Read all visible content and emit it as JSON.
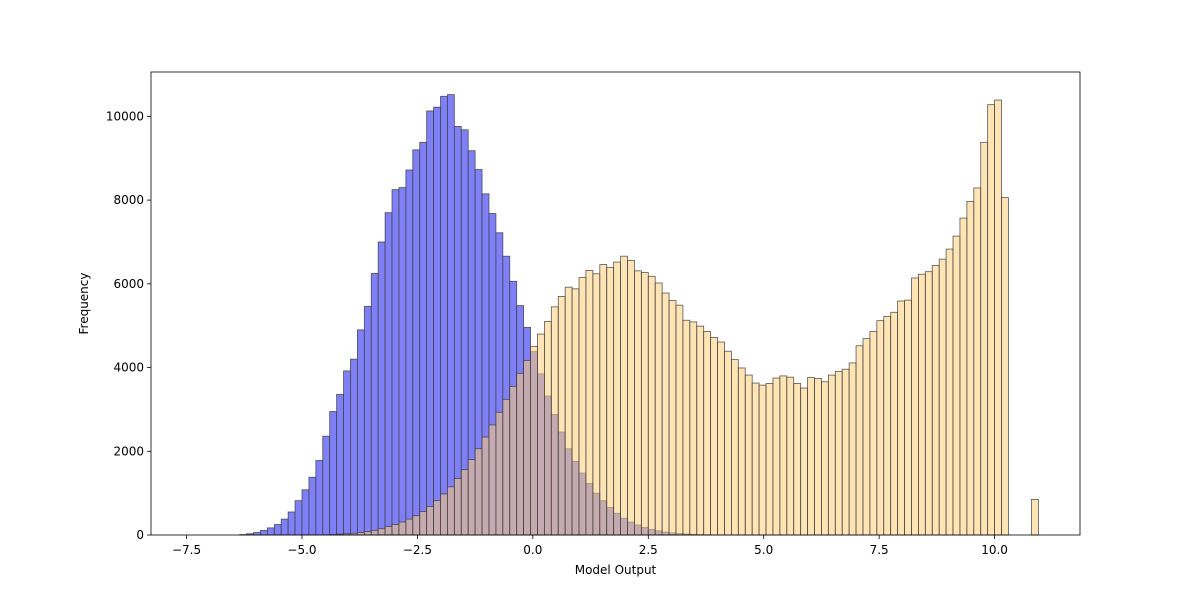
{
  "chart_data": {
    "type": "bar",
    "title": "",
    "xlabel": "Model Output",
    "ylabel": "Frequency",
    "xlim": [
      -8.27,
      11.85
    ],
    "ylim": [
      0,
      11060
    ],
    "bin_width": 0.15,
    "grid": false,
    "x_ticks": [
      -7.5,
      -5.0,
      -2.5,
      0.0,
      2.5,
      5.0,
      7.5,
      10.0
    ],
    "x_tick_labels": [
      "−7.5",
      "−5.0",
      "−2.5",
      "0.0",
      "2.5",
      "5.0",
      "7.5",
      "10.0"
    ],
    "y_ticks": [
      0,
      2000,
      4000,
      6000,
      8000,
      10000
    ],
    "y_tick_labels": [
      "0",
      "2000",
      "4000",
      "6000",
      "8000",
      "10000"
    ],
    "colors": {
      "series_a": "#7b7bf6",
      "series_b": "#ffcf79",
      "overlap": "#6b5ab8",
      "edge": "#3c3c3c"
    },
    "series": [
      {
        "color": "#7b7bf6",
        "bins": [
          [
            -6.5,
            0
          ],
          [
            -6.35,
            10
          ],
          [
            -6.2,
            30
          ],
          [
            -6.05,
            60
          ],
          [
            -5.9,
            110
          ],
          [
            -5.75,
            170
          ],
          [
            -5.6,
            250
          ],
          [
            -5.45,
            380
          ],
          [
            -5.3,
            550
          ],
          [
            -5.15,
            820
          ],
          [
            -5.0,
            1080
          ],
          [
            -4.85,
            1380
          ],
          [
            -4.7,
            1780
          ],
          [
            -4.55,
            2360
          ],
          [
            -4.4,
            2950
          ],
          [
            -4.25,
            3360
          ],
          [
            -4.1,
            3920
          ],
          [
            -3.95,
            4200
          ],
          [
            -3.8,
            4900
          ],
          [
            -3.65,
            5460
          ],
          [
            -3.5,
            6250
          ],
          [
            -3.35,
            7000
          ],
          [
            -3.2,
            7700
          ],
          [
            -3.05,
            8250
          ],
          [
            -2.9,
            8300
          ],
          [
            -2.75,
            8720
          ],
          [
            -2.6,
            9200
          ],
          [
            -2.45,
            9380
          ],
          [
            -2.3,
            10130
          ],
          [
            -2.15,
            10220
          ],
          [
            -2.0,
            10480
          ],
          [
            -1.85,
            10520
          ],
          [
            -1.7,
            9760
          ],
          [
            -1.55,
            9680
          ],
          [
            -1.4,
            9180
          ],
          [
            -1.25,
            8730
          ],
          [
            -1.1,
            8150
          ],
          [
            -0.95,
            7680
          ],
          [
            -0.8,
            7220
          ],
          [
            -0.65,
            6660
          ],
          [
            -0.5,
            6060
          ],
          [
            -0.35,
            5480
          ],
          [
            -0.2,
            4960
          ],
          [
            -0.05,
            4380
          ],
          [
            0.1,
            3850
          ],
          [
            0.25,
            3320
          ],
          [
            0.4,
            2880
          ],
          [
            0.55,
            2460
          ],
          [
            0.7,
            2060
          ],
          [
            0.85,
            1760
          ],
          [
            1.0,
            1480
          ],
          [
            1.15,
            1230
          ],
          [
            1.3,
            1000
          ],
          [
            1.45,
            820
          ],
          [
            1.6,
            660
          ],
          [
            1.75,
            520
          ],
          [
            1.9,
            400
          ],
          [
            2.05,
            310
          ],
          [
            2.2,
            240
          ],
          [
            2.35,
            180
          ],
          [
            2.5,
            135
          ],
          [
            2.65,
            100
          ],
          [
            2.8,
            70
          ],
          [
            2.95,
            50
          ],
          [
            3.1,
            35
          ],
          [
            3.25,
            25
          ],
          [
            3.4,
            15
          ],
          [
            3.55,
            10
          ],
          [
            3.7,
            5
          ]
        ]
      },
      {
        "color": "#ffcf79",
        "bins": [
          [
            -4.4,
            10
          ],
          [
            -4.25,
            20
          ],
          [
            -4.1,
            30
          ],
          [
            -3.95,
            40
          ],
          [
            -3.8,
            60
          ],
          [
            -3.65,
            80
          ],
          [
            -3.5,
            110
          ],
          [
            -3.35,
            150
          ],
          [
            -3.2,
            200
          ],
          [
            -3.05,
            250
          ],
          [
            -2.9,
            310
          ],
          [
            -2.75,
            380
          ],
          [
            -2.6,
            460
          ],
          [
            -2.45,
            560
          ],
          [
            -2.3,
            680
          ],
          [
            -2.15,
            820
          ],
          [
            -2.0,
            980
          ],
          [
            -1.85,
            1150
          ],
          [
            -1.7,
            1350
          ],
          [
            -1.55,
            1560
          ],
          [
            -1.4,
            1800
          ],
          [
            -1.25,
            2060
          ],
          [
            -1.1,
            2340
          ],
          [
            -0.95,
            2630
          ],
          [
            -0.8,
            2930
          ],
          [
            -0.65,
            3240
          ],
          [
            -0.5,
            3550
          ],
          [
            -0.35,
            3860
          ],
          [
            -0.2,
            4170
          ],
          [
            -0.05,
            4500
          ],
          [
            0.1,
            4800
          ],
          [
            0.25,
            5100
          ],
          [
            0.4,
            5450
          ],
          [
            0.55,
            5700
          ],
          [
            0.7,
            5920
          ],
          [
            0.85,
            5880
          ],
          [
            1.0,
            6150
          ],
          [
            1.15,
            6320
          ],
          [
            1.3,
            6240
          ],
          [
            1.45,
            6460
          ],
          [
            1.6,
            6390
          ],
          [
            1.75,
            6520
          ],
          [
            1.9,
            6660
          ],
          [
            2.05,
            6560
          ],
          [
            2.2,
            6310
          ],
          [
            2.35,
            6270
          ],
          [
            2.5,
            6180
          ],
          [
            2.65,
            6020
          ],
          [
            2.8,
            5780
          ],
          [
            2.95,
            5600
          ],
          [
            3.1,
            5490
          ],
          [
            3.25,
            5130
          ],
          [
            3.4,
            5090
          ],
          [
            3.55,
            4990
          ],
          [
            3.7,
            4860
          ],
          [
            3.85,
            4720
          ],
          [
            4.0,
            4610
          ],
          [
            4.15,
            4390
          ],
          [
            4.3,
            4190
          ],
          [
            4.45,
            3990
          ],
          [
            4.6,
            3820
          ],
          [
            4.75,
            3630
          ],
          [
            4.9,
            3580
          ],
          [
            5.05,
            3620
          ],
          [
            5.2,
            3750
          ],
          [
            5.35,
            3800
          ],
          [
            5.5,
            3770
          ],
          [
            5.65,
            3620
          ],
          [
            5.8,
            3510
          ],
          [
            5.95,
            3760
          ],
          [
            6.1,
            3740
          ],
          [
            6.25,
            3660
          ],
          [
            6.4,
            3820
          ],
          [
            6.55,
            3910
          ],
          [
            6.7,
            3960
          ],
          [
            6.85,
            4110
          ],
          [
            7.0,
            4520
          ],
          [
            7.15,
            4690
          ],
          [
            7.3,
            4860
          ],
          [
            7.45,
            5120
          ],
          [
            7.6,
            5220
          ],
          [
            7.75,
            5320
          ],
          [
            7.9,
            5590
          ],
          [
            8.05,
            5610
          ],
          [
            8.2,
            6140
          ],
          [
            8.35,
            6230
          ],
          [
            8.5,
            6290
          ],
          [
            8.65,
            6440
          ],
          [
            8.8,
            6590
          ],
          [
            8.95,
            6830
          ],
          [
            9.1,
            7140
          ],
          [
            9.25,
            7570
          ],
          [
            9.4,
            7970
          ],
          [
            9.55,
            8290
          ],
          [
            9.7,
            9380
          ],
          [
            9.85,
            10280
          ],
          [
            10.0,
            10390
          ],
          [
            10.15,
            8060
          ],
          [
            10.8,
            850
          ]
        ]
      }
    ]
  }
}
